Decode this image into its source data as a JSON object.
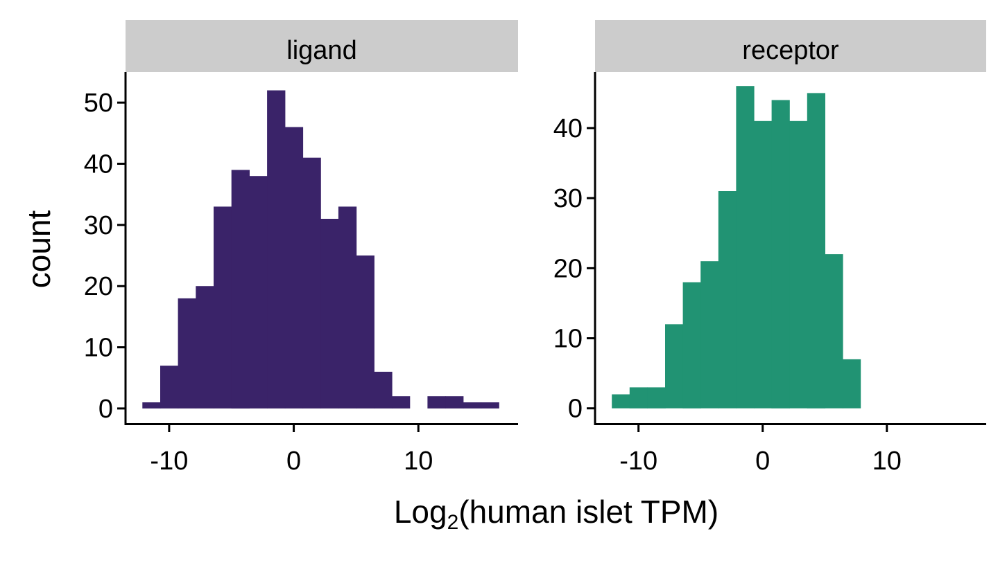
{
  "chart_data": {
    "type": "bar",
    "subtype": "faceted-histogram",
    "xlabel": {
      "prefix": "Log",
      "subscript": "2",
      "suffix": "(human islet TPM)"
    },
    "ylabel": "count",
    "xlim": [
      -13.5,
      18
    ],
    "xticks": [
      -10,
      0,
      10
    ],
    "xtick_labels": [
      "-10",
      "0",
      "10"
    ],
    "grid": false,
    "legend": "none",
    "bin_width": 1.43,
    "facets": [
      {
        "label": "ligand",
        "color": "#3a2369",
        "ylim": [
          -2.5,
          55
        ],
        "yticks": [
          0,
          10,
          20,
          30,
          40,
          50
        ],
        "ytick_labels": [
          "0",
          "10",
          "20",
          "30",
          "40",
          "50"
        ],
        "bins": [
          {
            "x0": -12.15,
            "x1": -10.72,
            "count": 1
          },
          {
            "x0": -10.72,
            "x1": -9.29,
            "count": 7
          },
          {
            "x0": -9.29,
            "x1": -7.86,
            "count": 18
          },
          {
            "x0": -7.86,
            "x1": -6.43,
            "count": 20
          },
          {
            "x0": -6.43,
            "x1": -5.0,
            "count": 33
          },
          {
            "x0": -5.0,
            "x1": -3.57,
            "count": 39
          },
          {
            "x0": -3.57,
            "x1": -2.14,
            "count": 38
          },
          {
            "x0": -2.14,
            "x1": -0.71,
            "count": 52
          },
          {
            "x0": -0.71,
            "x1": 0.72,
            "count": 46
          },
          {
            "x0": 0.72,
            "x1": 2.15,
            "count": 41
          },
          {
            "x0": 2.15,
            "x1": 3.58,
            "count": 31
          },
          {
            "x0": 3.58,
            "x1": 5.01,
            "count": 33
          },
          {
            "x0": 5.01,
            "x1": 6.44,
            "count": 25
          },
          {
            "x0": 6.44,
            "x1": 7.87,
            "count": 6
          },
          {
            "x0": 7.87,
            "x1": 9.3,
            "count": 2
          },
          {
            "x0": 9.3,
            "x1": 10.73,
            "count": 0
          },
          {
            "x0": 10.73,
            "x1": 12.16,
            "count": 2
          },
          {
            "x0": 12.16,
            "x1": 13.59,
            "count": 2
          },
          {
            "x0": 13.59,
            "x1": 15.02,
            "count": 1
          },
          {
            "x0": 15.02,
            "x1": 16.45,
            "count": 1
          }
        ]
      },
      {
        "label": "receptor",
        "color": "#219373",
        "ylim": [
          -2.2,
          48
        ],
        "yticks": [
          0,
          10,
          20,
          30,
          40
        ],
        "ytick_labels": [
          "0",
          "10",
          "20",
          "30",
          "40"
        ],
        "bins": [
          {
            "x0": -12.15,
            "x1": -10.72,
            "count": 2
          },
          {
            "x0": -10.72,
            "x1": -9.29,
            "count": 3
          },
          {
            "x0": -9.29,
            "x1": -7.86,
            "count": 3
          },
          {
            "x0": -7.86,
            "x1": -6.43,
            "count": 12
          },
          {
            "x0": -6.43,
            "x1": -5.0,
            "count": 18
          },
          {
            "x0": -5.0,
            "x1": -3.57,
            "count": 21
          },
          {
            "x0": -3.57,
            "x1": -2.14,
            "count": 31
          },
          {
            "x0": -2.14,
            "x1": -0.71,
            "count": 46
          },
          {
            "x0": -0.71,
            "x1": 0.72,
            "count": 41
          },
          {
            "x0": 0.72,
            "x1": 2.15,
            "count": 44
          },
          {
            "x0": 2.15,
            "x1": 3.58,
            "count": 41
          },
          {
            "x0": 3.58,
            "x1": 5.01,
            "count": 45
          },
          {
            "x0": 5.01,
            "x1": 6.44,
            "count": 22
          },
          {
            "x0": 6.44,
            "x1": 7.87,
            "count": 7
          }
        ]
      }
    ]
  }
}
